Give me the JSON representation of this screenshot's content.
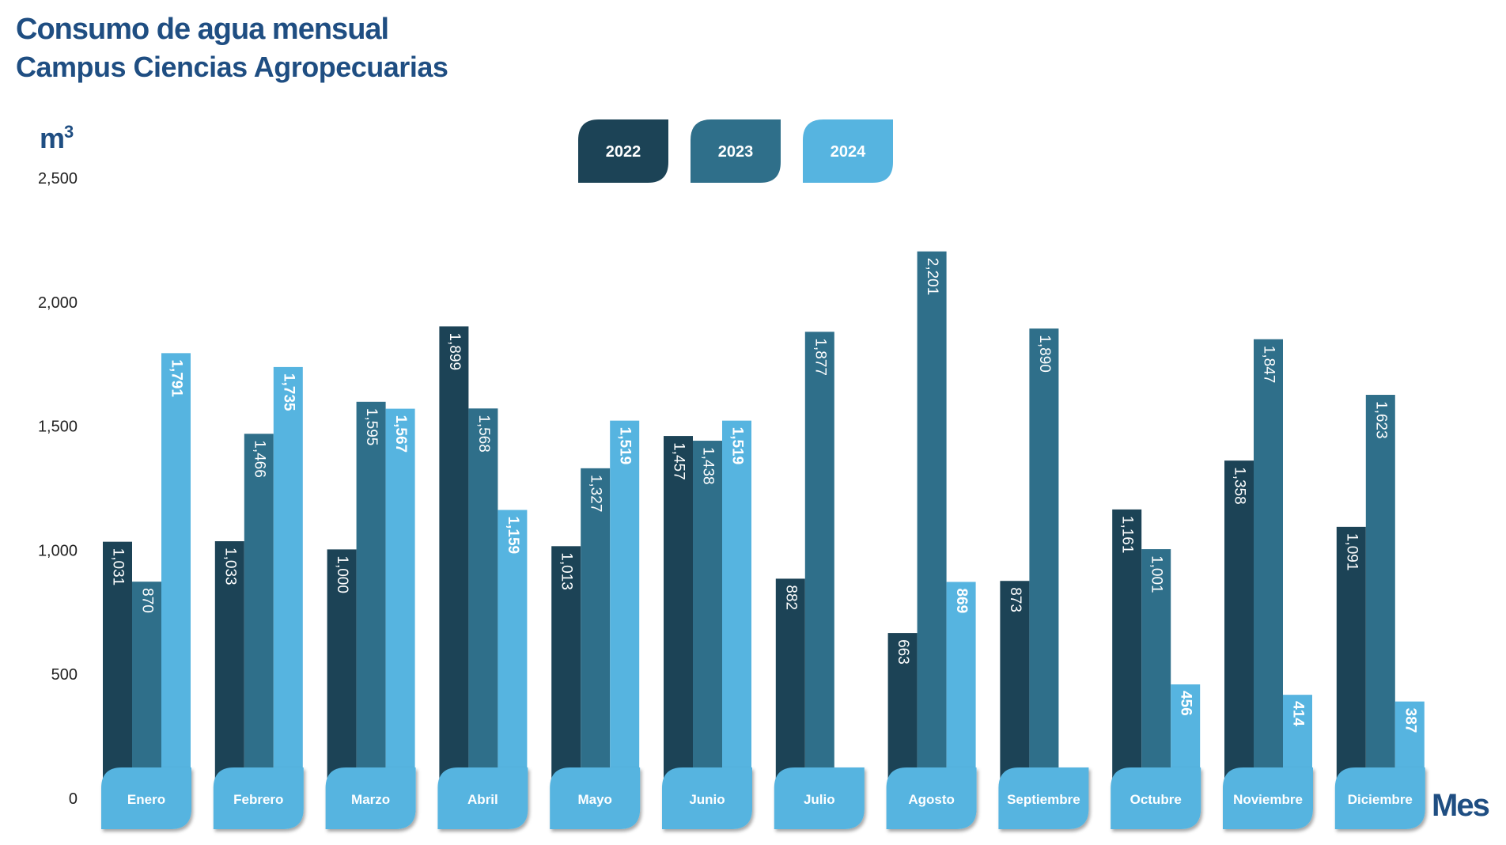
{
  "chart_data": {
    "type": "bar",
    "title": "Consumo de agua mensual",
    "subtitle": "Campus Ciencias Agropecuarias",
    "ylabel": "m",
    "ylabel_superscript": "3",
    "xlabel": "Mes",
    "ylim": [
      0,
      2500
    ],
    "yticks": [
      0,
      500,
      1000,
      1500,
      2000,
      2500
    ],
    "ytick_labels": [
      "0",
      "500",
      "1,000",
      "1,500",
      "2,000",
      "2,500"
    ],
    "grid": false,
    "legend_position": "top-center",
    "categories": [
      "Enero",
      "Febrero",
      "Marzo",
      "Abril",
      "Mayo",
      "Junio",
      "Julio",
      "Agosto",
      "Septiembre",
      "Octubre",
      "Noviembre",
      "Diciembre"
    ],
    "series": [
      {
        "name": "2022",
        "color": "#1c4356",
        "values": [
          1031,
          1033,
          1000,
          1899,
          1013,
          1457,
          882,
          663,
          873,
          1161,
          1358,
          1091
        ],
        "labels": [
          "1,031",
          "1,033",
          "1,000",
          "1,899",
          "1,013",
          "1,457",
          "882",
          "663",
          "873",
          "1,161",
          "1,358",
          "1,091"
        ]
      },
      {
        "name": "2023",
        "color": "#2f6f8a",
        "values": [
          870,
          1466,
          1595,
          1568,
          1327,
          1438,
          1877,
          2201,
          1890,
          1001,
          1847,
          1623
        ],
        "labels": [
          "870",
          "1,466",
          "1,595",
          "1,568",
          "1,327",
          "1,438",
          "1,877",
          "2,201",
          "1,890",
          "1,001",
          "1,847",
          "1,623"
        ]
      },
      {
        "name": "2024",
        "color": "#56b4e0",
        "values": [
          1791,
          1735,
          1567,
          1159,
          1519,
          1519,
          null,
          869,
          null,
          456,
          414,
          387
        ],
        "labels": [
          "1,791",
          "1,735",
          "1,567",
          "1,159",
          "1,519",
          "1,519",
          null,
          "869",
          null,
          "456",
          "414",
          "387"
        ]
      }
    ],
    "category_tab_color": "#56b4e0"
  }
}
